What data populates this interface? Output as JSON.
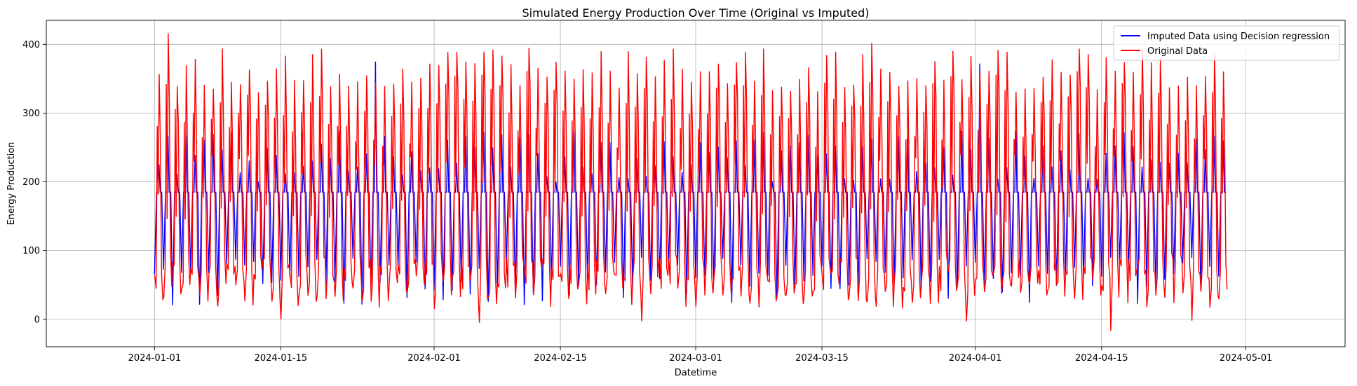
{
  "chart_data": {
    "type": "line",
    "title": "Simulated Energy Production Over Time (Original vs Imputed)",
    "xlabel": "Datetime",
    "ylabel": "Energy Production",
    "x_range": [
      "2023-12-20",
      "2024-05-12"
    ],
    "ylim": [
      -40,
      435
    ],
    "x_ticks": [
      "2024-01-01",
      "2024-01-15",
      "2024-02-01",
      "2024-02-15",
      "2024-03-01",
      "2024-03-15",
      "2024-04-01",
      "2024-04-15",
      "2024-05-01"
    ],
    "y_ticks": [
      0,
      100,
      200,
      300,
      400
    ],
    "grid": true,
    "legend_position": "top-right",
    "data_start": "2024-01-01",
    "data_end": "2024-04-29",
    "series": [
      {
        "name": "Imputed Data using Decision regression",
        "color": "#0000ff",
        "imputed_fill_value": 185,
        "daily_peak_range": [
          200,
          275
        ],
        "daily_low_range": [
          20,
          90
        ],
        "notable_peaks": [
          {
            "date": "2024-01-25",
            "value": 375
          },
          {
            "date": "2024-04-01",
            "value": 372
          }
        ]
      },
      {
        "name": "Original Data",
        "color": "#ff0000",
        "daily_peak_range": [
          330,
          395
        ],
        "daily_low_range": [
          15,
          90
        ],
        "notable_peaks": [
          {
            "date": "2024-01-02",
            "value": 416
          },
          {
            "date": "2024-03-20",
            "value": 402
          },
          {
            "date": "2024-04-03",
            "value": 392
          }
        ],
        "notable_lows": [
          {
            "date": "2024-01-15",
            "value": 0
          },
          {
            "date": "2024-02-06",
            "value": -5
          },
          {
            "date": "2024-02-24",
            "value": -3
          },
          {
            "date": "2024-03-31",
            "value": -3
          },
          {
            "date": "2024-04-16",
            "value": -17
          },
          {
            "date": "2024-04-25",
            "value": -2
          }
        ]
      }
    ]
  }
}
